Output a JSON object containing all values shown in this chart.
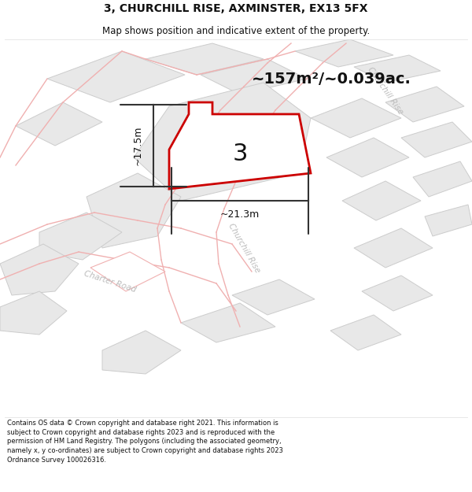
{
  "title_line1": "3, CHURCHILL RISE, AXMINSTER, EX13 5FX",
  "title_line2": "Map shows position and indicative extent of the property.",
  "footer_text": "Contains OS data © Crown copyright and database right 2021. This information is subject to Crown copyright and database rights 2023 and is reproduced with the permission of HM Land Registry. The polygons (including the associated geometry, namely x, y co-ordinates) are subject to Crown copyright and database rights 2023 Ordnance Survey 100026316.",
  "area_label": "~157m²/~0.039ac.",
  "plot_number": "3",
  "dim_width": "~21.3m",
  "dim_height": "~17.5m",
  "map_bg": "#ffffff",
  "plot_fill": "#f0f0f0",
  "plot_stroke": "#cc0000",
  "road_stroke": "#f0b0b0",
  "block_fill": "#e8e8e8",
  "block_stroke": "#cccccc",
  "road_label_color": "#aaaaaa",
  "title_color": "#111111",
  "footer_color": "#111111",
  "title_fontsize": 10,
  "subtitle_fontsize": 8.5,
  "footer_fontsize": 6.0,
  "area_fontsize": 14,
  "plot_num_fontsize": 22,
  "dim_fontsize": 9
}
